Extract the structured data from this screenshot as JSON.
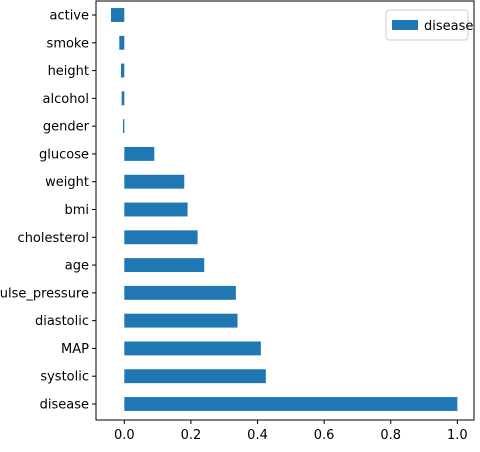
{
  "chart_data": {
    "type": "bar",
    "orientation": "horizontal",
    "categories": [
      "active",
      "smoke",
      "height",
      "alcohol",
      "gender",
      "glucose",
      "weight",
      "bmi",
      "cholesterol",
      "age",
      "pulse_pressure",
      "diastolic",
      "MAP",
      "systolic",
      "disease"
    ],
    "series": [
      {
        "name": "disease",
        "values": [
          -0.04,
          -0.015,
          -0.01,
          -0.008,
          -0.004,
          0.09,
          0.18,
          0.19,
          0.22,
          0.24,
          0.335,
          0.34,
          0.41,
          0.425,
          1.0
        ],
        "color": "#1f77b4"
      }
    ],
    "title": "",
    "xlabel": "",
    "ylabel": "",
    "xlim": [
      -0.085,
      1.05
    ],
    "xticks": [
      0.0,
      0.2,
      0.4,
      0.6,
      0.8,
      1.0
    ],
    "xtick_labels": [
      "0.0",
      "0.2",
      "0.4",
      "0.6",
      "0.8",
      "1.0"
    ],
    "grid": false,
    "legend": {
      "placement": "top-right",
      "entries": [
        "disease"
      ]
    }
  }
}
